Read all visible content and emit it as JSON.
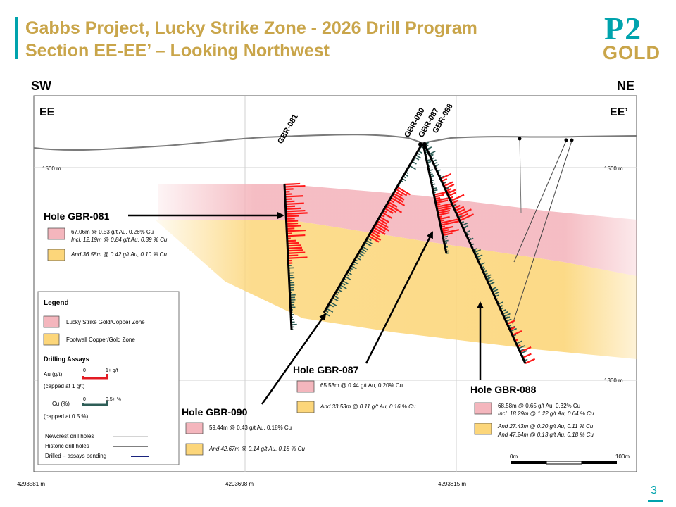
{
  "header": {
    "title_line1": "Gabbs Project, Lucky Strike Zone - 2026 Drill Program",
    "title_line2": "Section EE-EE’ – Looking Northwest",
    "logo_p2": "P2",
    "logo_gold": "GOLD",
    "brand_teal": "#00a3ad",
    "brand_gold": "#c9a54a"
  },
  "section": {
    "dir_left": "SW",
    "dir_right": "NE",
    "end_left": "EE",
    "end_right": "EE’",
    "elev_upper": "1500 m",
    "elev_lower": "1300 m",
    "easting": [
      "4293581 m",
      "4293698 m",
      "4293815 m"
    ]
  },
  "hole_labels": [
    "GBR-081",
    "GBR-090",
    "GBR-087",
    "GBR-088"
  ],
  "holes": {
    "gbr081": {
      "title": "Hole GBR-081",
      "row1": "67.06m @  0.53 g/t Au, 0.26% Cu",
      "row1_incl": "Incl. 12.19m @ 0.84 g/t Au, 0.39 % Cu",
      "row2": "And 36.58m @  0.42 g/t Au, 0.10 % Cu"
    },
    "gbr087": {
      "title": "Hole GBR-087",
      "row1": "65.53m @  0.44 g/t Au, 0.20% Cu",
      "row2": "And 33.53m @  0.11 g/t Au, 0.16 % Cu"
    },
    "gbr090": {
      "title": "Hole GBR-090",
      "row1": "59.44m @  0.43 g/t Au, 0.18% Cu",
      "row2": "And 42.67m @  0.14 g/t Au, 0.18 % Cu"
    },
    "gbr088": {
      "title": "Hole GBR-088",
      "row1": "68.58m @  0.65 g/t Au, 0.32% Cu",
      "row1_incl": "Incl. 18.29m @ 1.22 g/t Au, 0.64 % Cu",
      "row2": "And 27.43m @  0.20 g/t Au, 0.11 % Cu",
      "row3": "And 47.24m @  0.13 g/t Au, 0.18 % Cu"
    }
  },
  "legend": {
    "title": "Legend",
    "zone1": "Lucky Strike Gold/Copper Zone",
    "zone2": "Footwall Copper/Gold Zone",
    "assays_title": "Drilling Assays",
    "au_label": "Au (g/t)",
    "au_min": "0",
    "au_max": "1+ g/t",
    "au_cap": "(capped at 1 g/t)",
    "cu_label": "Cu (%)",
    "cu_min": "0",
    "cu_max": "0.5+ %",
    "cu_cap": "(capped at 0.5 %)",
    "line1": "Newcrest drill holes",
    "line2": "Historic drill holes",
    "line3": "Drilled – assays pending"
  },
  "scale": {
    "left": "0m",
    "right": "100m"
  },
  "colors": {
    "au": "#ff1a1a",
    "cu": "#2e5e57",
    "zone1": "#f4b6bd",
    "zone2": "#fcd67a"
  },
  "page_number": "3"
}
